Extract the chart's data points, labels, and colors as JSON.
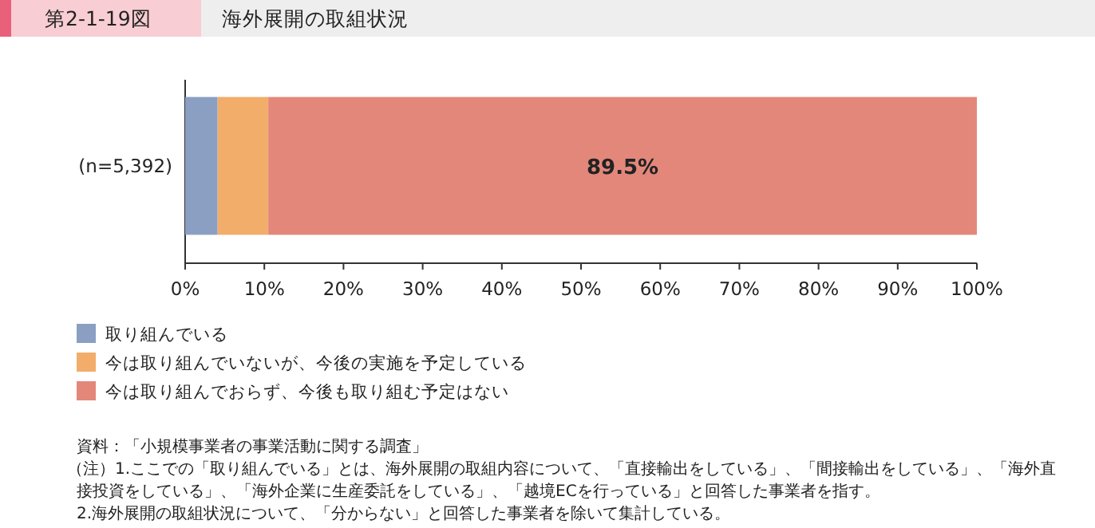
{
  "chart_data": {
    "type": "bar",
    "orientation": "horizontal",
    "stacked": true,
    "subtitle": "第2-1-19図",
    "title": "海外展開の取組状況",
    "categories": [
      "(n=5,392)"
    ],
    "series": [
      {
        "name": "取り組んでいる",
        "color": "#8a9fc2",
        "values": [
          4.1
        ]
      },
      {
        "name": "今は取り組んでいないが、今後の実施を予定している",
        "color": "#f2ad6b",
        "values": [
          6.4
        ]
      },
      {
        "name": "今は取り組んでおらず、今後も取り組む予定はない",
        "color": "#e3877b",
        "values": [
          89.5
        ],
        "value_labels": [
          "89.5%"
        ]
      }
    ],
    "xlim": [
      0,
      100
    ],
    "xticks": [
      {
        "value": 0,
        "label": "0%"
      },
      {
        "value": 10,
        "label": "10%"
      },
      {
        "value": 20,
        "label": "20%"
      },
      {
        "value": 30,
        "label": "30%"
      },
      {
        "value": 40,
        "label": "40%"
      },
      {
        "value": 50,
        "label": "50%"
      },
      {
        "value": 60,
        "label": "60%"
      },
      {
        "value": 70,
        "label": "70%"
      },
      {
        "value": 80,
        "label": "80%"
      },
      {
        "value": 90,
        "label": "90%"
      },
      {
        "value": 100,
        "label": "100%"
      }
    ],
    "legend": "bottom left",
    "annotations": [
      "資料：「小規模事業者の事業活動に関する調査」",
      "（注）1.ここでの「取り組んでいる」とは、海外展開の取組内容について、「直接輸出をしている」、「間接輸出をしている」、「海外直",
      "接投資をしている」、「海外企業に生産委託をしている」、「越境ECを行っている」と回答した事業者を指す。",
      "2.海外展開の取組状況について、「分からない」と回答した事業者を除いて集計している。"
    ]
  }
}
